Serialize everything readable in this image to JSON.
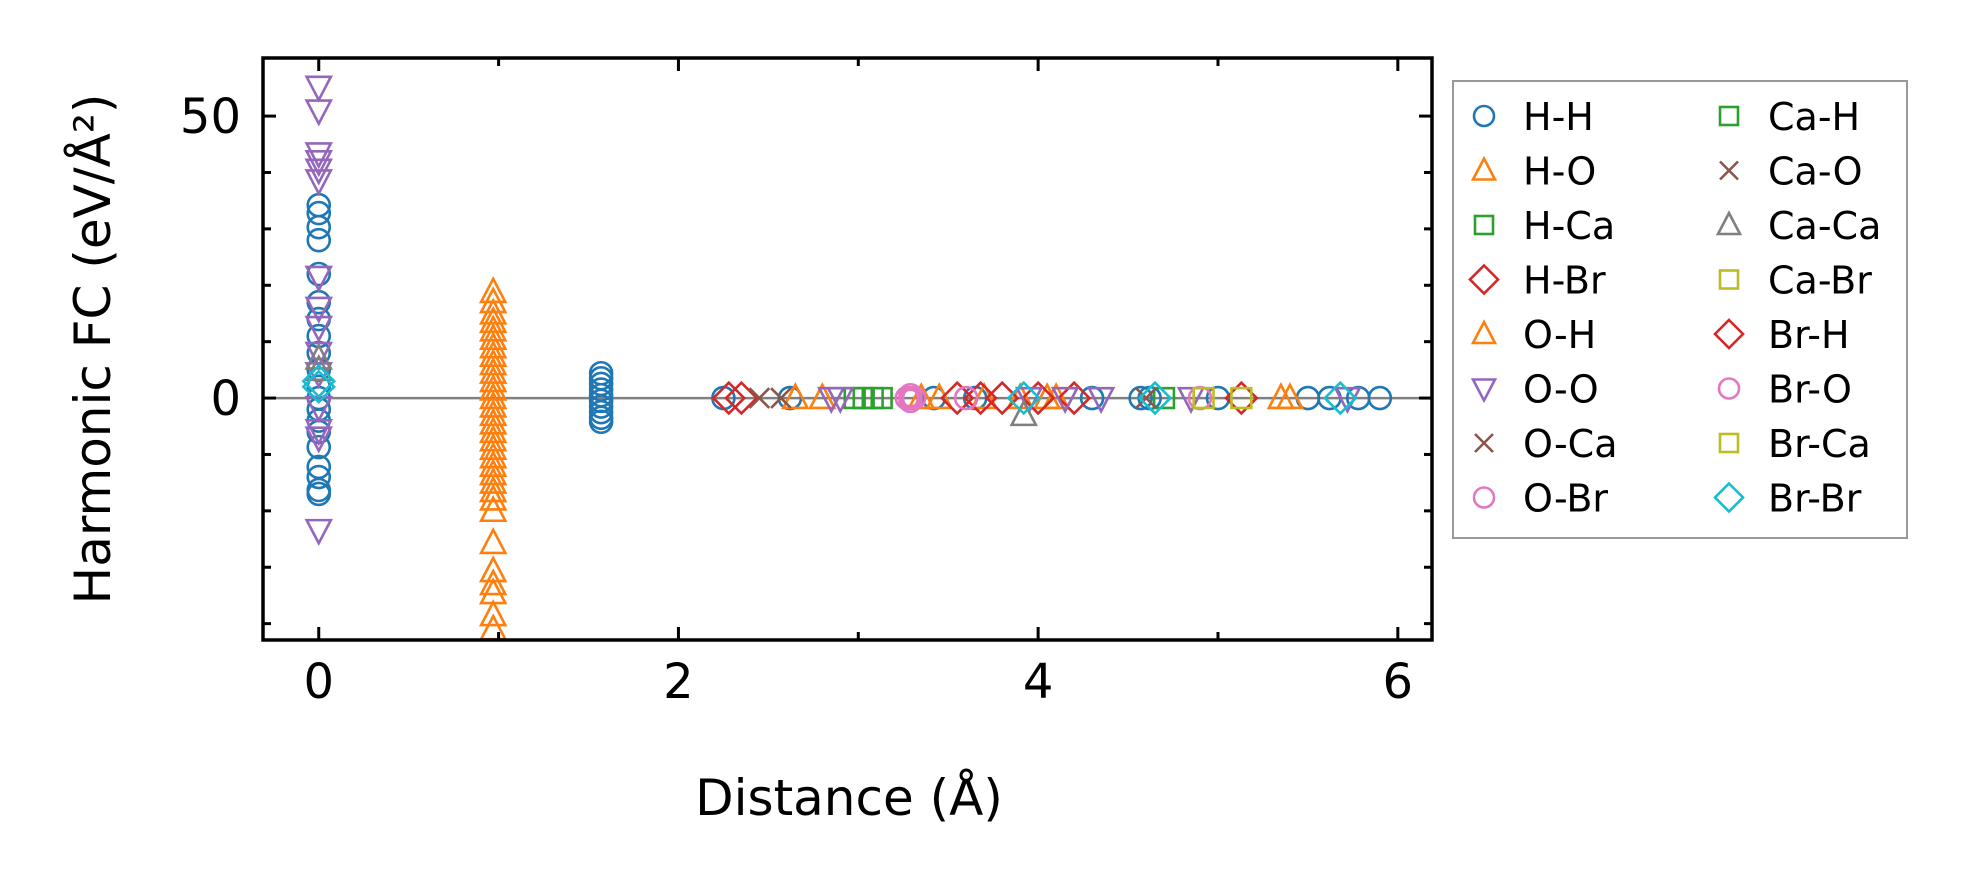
{
  "chart_data": {
    "type": "scatter",
    "title": "",
    "xlabel": "Distance (Å)",
    "ylabel": "Harmonic FC (eV/Å²)",
    "xlim": [
      -0.31,
      6.19
    ],
    "ylim": [
      -42.9,
      60.3
    ],
    "xticks": [
      0,
      2,
      4,
      6
    ],
    "xtick_labels": [
      "0",
      "2",
      "4",
      "6"
    ],
    "xminor": [
      1,
      3,
      5
    ],
    "yticks": [
      0,
      50
    ],
    "ytick_labels": [
      "0",
      "50"
    ],
    "yminor": [
      -40,
      -30,
      -20,
      -10,
      10,
      20,
      30,
      40
    ],
    "grid": false,
    "zero_line": {
      "y": 0,
      "color": "#808080"
    },
    "legend": {
      "placement": "outside-right",
      "columns": 2
    },
    "series": [
      {
        "name": "H-H",
        "marker": "circle",
        "color": "#1f77b4",
        "points": [
          [
            0,
            34.2
          ],
          [
            0,
            32.8
          ],
          [
            0,
            30.3
          ],
          [
            0,
            28
          ],
          [
            0,
            22
          ],
          [
            0,
            17
          ],
          [
            0,
            14
          ],
          [
            0,
            11
          ],
          [
            0,
            8
          ],
          [
            0,
            5
          ],
          [
            0,
            2
          ],
          [
            0,
            0
          ],
          [
            0,
            -2
          ],
          [
            0,
            -4
          ],
          [
            0,
            -6
          ],
          [
            0,
            -8.7
          ],
          [
            0,
            -12.2
          ],
          [
            0,
            -14
          ],
          [
            0,
            -16.3
          ],
          [
            0,
            -17
          ],
          [
            1.57,
            4.4
          ],
          [
            1.57,
            3.5
          ],
          [
            1.57,
            2.5
          ],
          [
            1.57,
            1.5
          ],
          [
            1.57,
            0.5
          ],
          [
            1.57,
            -0.5
          ],
          [
            1.57,
            -1.5
          ],
          [
            1.57,
            -2.5
          ],
          [
            1.57,
            -3.5
          ],
          [
            1.57,
            -4.2
          ],
          [
            2.25,
            0
          ],
          [
            2.62,
            0
          ],
          [
            3.42,
            0
          ],
          [
            3.65,
            0
          ],
          [
            4.3,
            0
          ],
          [
            4.57,
            0
          ],
          [
            4.62,
            0
          ],
          [
            5.0,
            0
          ],
          [
            5.5,
            0
          ],
          [
            5.62,
            0
          ],
          [
            5.78,
            0
          ],
          [
            5.9,
            0
          ]
        ]
      },
      {
        "name": "H-O",
        "marker": "triangle-up",
        "color": "#ff7f0e",
        "points": [
          [
            2.65,
            0
          ],
          [
            2.8,
            0
          ],
          [
            3.35,
            0
          ],
          [
            3.45,
            0
          ],
          [
            3.7,
            0
          ],
          [
            3.9,
            0
          ],
          [
            4.05,
            0
          ],
          [
            4.1,
            0
          ],
          [
            5.35,
            0
          ],
          [
            5.4,
            0
          ]
        ]
      },
      {
        "name": "H-Ca",
        "marker": "square",
        "color": "#2ca02c",
        "points": [
          [
            2.98,
            0
          ],
          [
            3.03,
            0
          ],
          [
            3.08,
            0
          ],
          [
            3.13,
            0
          ]
        ]
      },
      {
        "name": "H-Br",
        "marker": "diamond",
        "color": "#d62728",
        "points": [
          [
            2.28,
            0
          ],
          [
            2.35,
            0
          ],
          [
            3.55,
            0
          ],
          [
            3.68,
            0
          ],
          [
            3.8,
            0
          ],
          [
            4.0,
            0
          ],
          [
            4.2,
            0
          ]
        ]
      },
      {
        "name": "O-H",
        "marker": "triangle-up",
        "color": "#ff7f0e",
        "points": [
          [
            0.97,
            18.8
          ],
          [
            0.97,
            17
          ],
          [
            0.97,
            15
          ],
          [
            0.97,
            13.5
          ],
          [
            0.97,
            12
          ],
          [
            0.97,
            10.5
          ],
          [
            0.97,
            9
          ],
          [
            0.97,
            7.5
          ],
          [
            0.97,
            6
          ],
          [
            0.97,
            4.5
          ],
          [
            0.97,
            3
          ],
          [
            0.97,
            1.5
          ],
          [
            0.97,
            0
          ],
          [
            0.97,
            -1.5
          ],
          [
            0.97,
            -3
          ],
          [
            0.97,
            -4.5
          ],
          [
            0.97,
            -6
          ],
          [
            0.97,
            -7.5
          ],
          [
            0.97,
            -9
          ],
          [
            0.97,
            -10.5
          ],
          [
            0.97,
            -12
          ],
          [
            0.97,
            -13.5
          ],
          [
            0.97,
            -15
          ],
          [
            0.97,
            -16.5
          ],
          [
            0.97,
            -18
          ],
          [
            0.97,
            -20
          ],
          [
            0.97,
            -25.7
          ],
          [
            0.97,
            -30.7
          ],
          [
            0.97,
            -33
          ],
          [
            0.97,
            -34.6
          ],
          [
            0.97,
            -38.5
          ],
          [
            0.97,
            -41
          ]
        ]
      },
      {
        "name": "O-O",
        "marker": "triangle-down",
        "color": "#9467bd",
        "points": [
          [
            0,
            55.2
          ],
          [
            0,
            51
          ],
          [
            0,
            43.4
          ],
          [
            0,
            42
          ],
          [
            0,
            40.5
          ],
          [
            0,
            38.6
          ],
          [
            0,
            21.5
          ],
          [
            0,
            16
          ],
          [
            0,
            12.6
          ],
          [
            0,
            8
          ],
          [
            0,
            4.4
          ],
          [
            0,
            -1.6
          ],
          [
            0,
            -5.7
          ],
          [
            0,
            -7
          ],
          [
            0,
            -23.4
          ],
          [
            2.85,
            0
          ],
          [
            2.9,
            0
          ],
          [
            3.95,
            0
          ],
          [
            4.15,
            0
          ],
          [
            4.35,
            0
          ],
          [
            4.85,
            0
          ],
          [
            5.72,
            0
          ]
        ]
      },
      {
        "name": "O-Ca",
        "marker": "x",
        "color": "#8c564b",
        "points": [
          [
            2.45,
            0
          ],
          [
            2.57,
            0
          ]
        ]
      },
      {
        "name": "O-Br",
        "marker": "circle",
        "color": "#e377c2",
        "points": [
          [
            4.9,
            0
          ]
        ]
      },
      {
        "name": "Ca-H",
        "marker": "square",
        "color": "#2ca02c",
        "points": [
          [
            4.7,
            0
          ]
        ]
      },
      {
        "name": "Ca-O",
        "marker": "x",
        "color": "#8c564b",
        "points": [
          [
            4.6,
            0
          ]
        ]
      },
      {
        "name": "Ca-Ca",
        "marker": "triangle-up",
        "color": "#7f7f7f",
        "points": [
          [
            0,
            7
          ],
          [
            0,
            5
          ],
          [
            3.92,
            -3
          ]
        ]
      },
      {
        "name": "Ca-Br",
        "marker": "square",
        "color": "#bcbd22",
        "points": [
          [
            4.92,
            0
          ]
        ]
      },
      {
        "name": "Br-H",
        "marker": "diamond",
        "color": "#d62728",
        "points": [
          [
            5.13,
            0
          ]
        ]
      },
      {
        "name": "Br-O",
        "marker": "circle",
        "color": "#e377c2",
        "points": [
          [
            3.27,
            0
          ],
          [
            3.29,
            0
          ],
          [
            3.31,
            0
          ],
          [
            3.29,
            0.5
          ],
          [
            3.29,
            -0.5
          ],
          [
            3.6,
            0
          ]
        ]
      },
      {
        "name": "Br-Ca",
        "marker": "square",
        "color": "#bcbd22",
        "points": [
          [
            5.13,
            0
          ]
        ]
      },
      {
        "name": "Br-Br",
        "marker": "diamond",
        "color": "#17becf",
        "points": [
          [
            0,
            3
          ],
          [
            0,
            2
          ],
          [
            3.92,
            0
          ],
          [
            4.65,
            0
          ],
          [
            5.68,
            0
          ]
        ]
      }
    ]
  }
}
